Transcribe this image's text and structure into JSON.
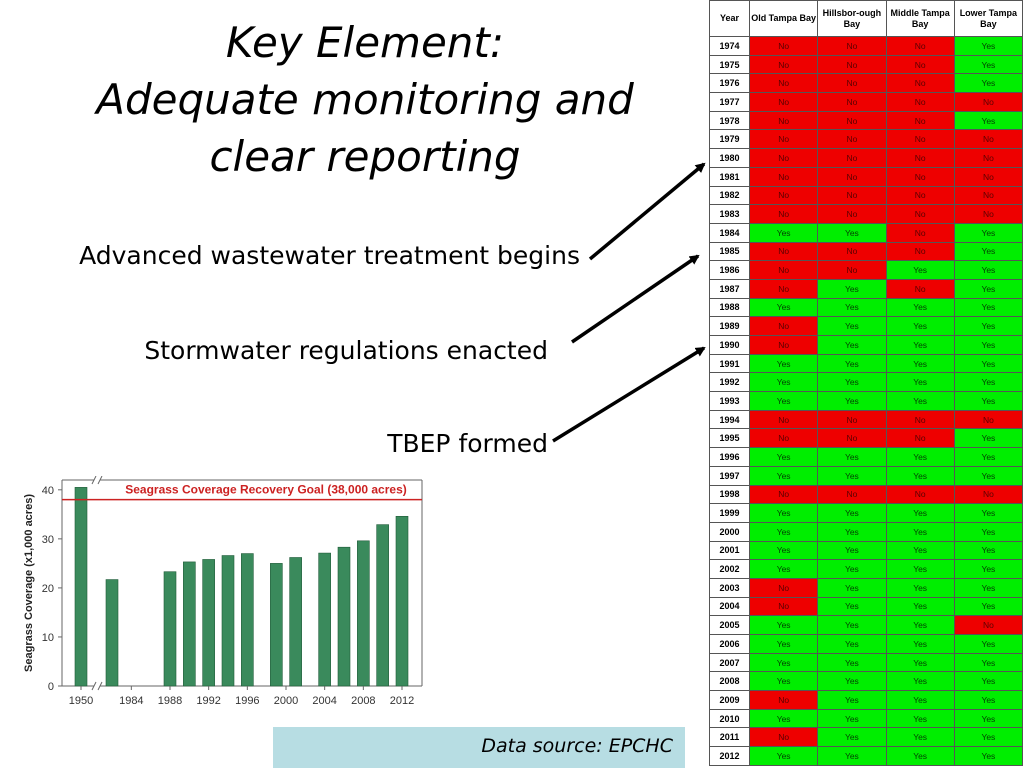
{
  "slide": {
    "title_lines": [
      "Key Element:",
      "Adequate monitoring and",
      "clear reporting"
    ],
    "labels": {
      "advanced_wastewater": "Advanced wastewater treatment begins",
      "stormwater": "Stormwater regulations enacted",
      "tbep": "TBEP formed"
    },
    "data_source": "Data source: EPCHC"
  },
  "colors": {
    "yes": "#00ee00",
    "no": "#ee0000",
    "bar": "#3a8a5c",
    "goal_line": "#cc2222",
    "source_bg": "#b7dde3"
  },
  "table": {
    "headers": [
      "Year",
      "Old Tampa Bay",
      "Hillsbor-ough Bay",
      "Middle Tampa Bay",
      "Lower Tampa Bay"
    ],
    "rows": [
      [
        "1974",
        "No",
        "No",
        "No",
        "Yes"
      ],
      [
        "1975",
        "No",
        "No",
        "No",
        "Yes"
      ],
      [
        "1976",
        "No",
        "No",
        "No",
        "Yes"
      ],
      [
        "1977",
        "No",
        "No",
        "No",
        "No"
      ],
      [
        "1978",
        "No",
        "No",
        "No",
        "Yes"
      ],
      [
        "1979",
        "No",
        "No",
        "No",
        "No"
      ],
      [
        "1980",
        "No",
        "No",
        "No",
        "No"
      ],
      [
        "1981",
        "No",
        "No",
        "No",
        "No"
      ],
      [
        "1982",
        "No",
        "No",
        "No",
        "No"
      ],
      [
        "1983",
        "No",
        "No",
        "No",
        "No"
      ],
      [
        "1984",
        "Yes",
        "Yes",
        "No",
        "Yes"
      ],
      [
        "1985",
        "No",
        "No",
        "No",
        "Yes"
      ],
      [
        "1986",
        "No",
        "No",
        "Yes",
        "Yes"
      ],
      [
        "1987",
        "No",
        "Yes",
        "No",
        "Yes"
      ],
      [
        "1988",
        "Yes",
        "Yes",
        "Yes",
        "Yes"
      ],
      [
        "1989",
        "No",
        "Yes",
        "Yes",
        "Yes"
      ],
      [
        "1990",
        "No",
        "Yes",
        "Yes",
        "Yes"
      ],
      [
        "1991",
        "Yes",
        "Yes",
        "Yes",
        "Yes"
      ],
      [
        "1992",
        "Yes",
        "Yes",
        "Yes",
        "Yes"
      ],
      [
        "1993",
        "Yes",
        "Yes",
        "Yes",
        "Yes"
      ],
      [
        "1994",
        "No",
        "No",
        "No",
        "No"
      ],
      [
        "1995",
        "No",
        "No",
        "No",
        "Yes"
      ],
      [
        "1996",
        "Yes",
        "Yes",
        "Yes",
        "Yes"
      ],
      [
        "1997",
        "Yes",
        "Yes",
        "Yes",
        "Yes"
      ],
      [
        "1998",
        "No",
        "No",
        "No",
        "No"
      ],
      [
        "1999",
        "Yes",
        "Yes",
        "Yes",
        "Yes"
      ],
      [
        "2000",
        "Yes",
        "Yes",
        "Yes",
        "Yes"
      ],
      [
        "2001",
        "Yes",
        "Yes",
        "Yes",
        "Yes"
      ],
      [
        "2002",
        "Yes",
        "Yes",
        "Yes",
        "Yes"
      ],
      [
        "2003",
        "No",
        "Yes",
        "Yes",
        "Yes"
      ],
      [
        "2004",
        "No",
        "Yes",
        "Yes",
        "Yes"
      ],
      [
        "2005",
        "Yes",
        "Yes",
        "Yes",
        "No"
      ],
      [
        "2006",
        "Yes",
        "Yes",
        "Yes",
        "Yes"
      ],
      [
        "2007",
        "Yes",
        "Yes",
        "Yes",
        "Yes"
      ],
      [
        "2008",
        "Yes",
        "Yes",
        "Yes",
        "Yes"
      ],
      [
        "2009",
        "No",
        "Yes",
        "Yes",
        "Yes"
      ],
      [
        "2010",
        "Yes",
        "Yes",
        "Yes",
        "Yes"
      ],
      [
        "2011",
        "No",
        "Yes",
        "Yes",
        "Yes"
      ],
      [
        "2012",
        "Yes",
        "Yes",
        "Yes",
        "Yes"
      ]
    ]
  },
  "chart_data": {
    "type": "bar",
    "ylabel": "Seagrass Coverage (x1,000 acres)",
    "goal_label": "Seagrass Coverage Recovery Goal (38,000 acres)",
    "goal_value": 38,
    "ylim": [
      0,
      42
    ],
    "yticks": [
      0,
      10,
      20,
      30,
      40
    ],
    "xticks": [
      "1950",
      "1984",
      "1988",
      "1992",
      "1996",
      "2000",
      "2004",
      "2008",
      "2012"
    ],
    "x": [
      1950,
      1982,
      1988,
      1990,
      1992,
      1994,
      1996,
      1999,
      2001,
      2004,
      2006,
      2008,
      2010,
      2012
    ],
    "values": [
      40.5,
      21.7,
      23.3,
      25.3,
      25.8,
      26.6,
      27.0,
      25.0,
      26.2,
      27.1,
      28.3,
      29.6,
      32.9,
      34.6
    ],
    "axis_break": true,
    "grid": false
  }
}
